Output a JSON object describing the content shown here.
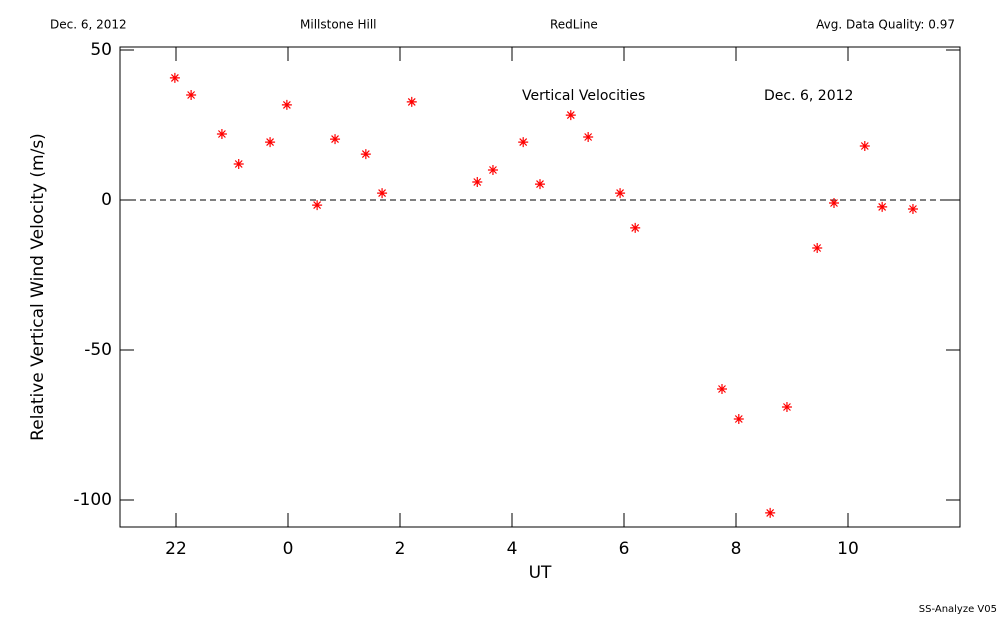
{
  "chart_data": {
    "type": "scatter",
    "header": [
      "Dec. 6, 2012",
      "Millstone Hill",
      "RedLine",
      "Avg. Data Quality: 0.97"
    ],
    "annotations": [
      "Vertical Velocities",
      "Dec. 6, 2012"
    ],
    "footer": "SS-Analyze V05",
    "x_label": "UT",
    "y_label": "Relative Vertical Wind Velocity  (m/s)",
    "xlim": [
      -3,
      12
    ],
    "ylim": [
      -109,
      51
    ],
    "xticks": [
      {
        "value": -2,
        "label": "22"
      },
      0,
      2,
      4,
      6,
      8,
      10
    ],
    "yticks": [
      50,
      0,
      -50,
      -100
    ],
    "zero_line": true,
    "series": [
      {
        "name": "Vertical Velocities",
        "color": "#ff0000",
        "x": [
          -2.02,
          -1.73,
          -1.18,
          -0.88,
          -0.32,
          -0.02,
          0.52,
          0.84,
          1.39,
          1.68,
          2.21,
          3.38,
          3.66,
          4.2,
          4.5,
          5.05,
          5.36,
          5.93,
          6.2,
          7.75,
          8.05,
          8.61,
          8.91,
          9.45,
          9.75,
          10.3,
          10.61,
          11.16
        ],
        "values": [
          40.7,
          35,
          22,
          12,
          19.3,
          31.7,
          -1.7,
          20.3,
          15.3,
          2.3,
          32.7,
          6,
          10,
          19.3,
          5.3,
          28.3,
          21,
          2.3,
          -9.3,
          -63,
          -73,
          -104.3,
          -69,
          -16,
          -1,
          18,
          -2.3,
          -3
        ]
      }
    ]
  }
}
